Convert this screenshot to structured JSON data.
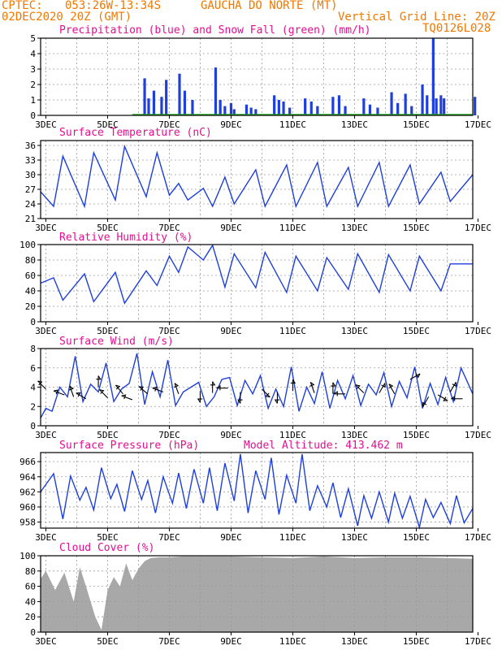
{
  "header": {
    "source": "CPTEC:",
    "coords": "053:26W-13:34S",
    "location": "GAUCHA DO NORTE (MT)",
    "run": "02DEC2020 20Z (GMT)",
    "grid_note": "Vertical Grid Line: 20Z",
    "model": "TQ0126L028"
  },
  "colors": {
    "header": "#f07800",
    "titles": "#e01090",
    "series": "#1f3fdc",
    "snow": "#22aa22",
    "cloud": "#a8a8a8",
    "grid": "#9a9a9a"
  },
  "x_ticks": [
    "3DEC",
    "5DEC",
    "7DEC",
    "9DEC",
    "11DEC",
    "13DEC",
    "15DEC",
    "17DEC"
  ],
  "chart_data": [
    {
      "type": "bar",
      "title": "Precipitation (blue) and Snow Fall (green) (mm/h)",
      "ylim": [
        0,
        5
      ],
      "yticks": [
        "0",
        "1",
        "2",
        "3",
        "4",
        "5"
      ],
      "grid": true,
      "x_days": [
        6.2,
        6.33,
        6.5,
        6.75,
        6.9,
        7.33,
        7.5,
        7.75,
        8.5,
        8.65,
        8.8,
        9.0,
        9.1,
        9.5,
        9.65,
        9.8,
        10.4,
        10.55,
        10.7,
        10.9,
        11.4,
        11.6,
        11.8,
        12.3,
        12.5,
        12.7,
        13.3,
        13.5,
        13.75,
        14.2,
        14.4,
        14.65,
        14.85,
        15.2,
        15.35,
        15.55,
        15.65,
        15.8,
        15.9,
        16.9
      ],
      "values": [
        2.4,
        1.1,
        1.6,
        1.2,
        2.3,
        2.7,
        1.6,
        1.0,
        3.1,
        1.0,
        0.6,
        0.8,
        0.4,
        0.7,
        0.5,
        0.4,
        1.3,
        1.0,
        0.9,
        0.5,
        1.1,
        0.9,
        0.6,
        1.2,
        1.3,
        0.6,
        1.1,
        0.7,
        0.5,
        1.5,
        0.8,
        1.4,
        0.6,
        2.0,
        1.3,
        5.0,
        1.1,
        1.3,
        1.1,
        1.2
      ],
      "snow": 0
    },
    {
      "type": "line",
      "title": "Surface Temperature (nC)",
      "ylim": [
        21,
        37
      ],
      "yticks": [
        "21",
        "24",
        "27",
        "30",
        "33",
        "36"
      ],
      "grid": true,
      "x_days": [
        2.83,
        3.25,
        3.55,
        4.25,
        4.55,
        5.25,
        5.55,
        6.25,
        6.6,
        7.0,
        7.3,
        7.6,
        8.1,
        8.4,
        8.8,
        9.1,
        9.8,
        10.1,
        10.8,
        11.1,
        11.8,
        12.1,
        12.8,
        13.1,
        13.8,
        14.1,
        14.8,
        15.1,
        15.8,
        16.1,
        16.83
      ],
      "values": [
        26.5,
        23.5,
        33.8,
        23.5,
        34.5,
        24.8,
        35.8,
        25.5,
        34.5,
        25.8,
        28.2,
        24.8,
        27.2,
        23.5,
        29.5,
        24.0,
        31.0,
        23.5,
        32.0,
        23.5,
        32.5,
        23.5,
        31.5,
        23.5,
        32.5,
        23.5,
        32.0,
        24.0,
        30.5,
        24.5,
        30.0
      ]
    },
    {
      "type": "line",
      "title": "Relative Humidity (%)",
      "ylim": [
        0,
        100
      ],
      "yticks": [
        "0",
        "20",
        "40",
        "60",
        "80",
        "100"
      ],
      "grid": true,
      "x_days": [
        2.83,
        3.25,
        3.55,
        4.25,
        4.55,
        5.25,
        5.55,
        6.25,
        6.6,
        7.0,
        7.3,
        7.6,
        8.1,
        8.4,
        8.8,
        9.1,
        9.8,
        10.1,
        10.8,
        11.1,
        11.8,
        12.1,
        12.8,
        13.1,
        13.8,
        14.1,
        14.8,
        15.1,
        15.8,
        16.1,
        16.83
      ],
      "values": [
        50,
        57,
        28,
        62,
        26,
        64,
        24,
        66,
        47,
        85,
        64,
        97,
        80,
        99,
        45,
        88,
        44,
        90,
        38,
        85,
        40,
        83,
        42,
        88,
        38,
        87,
        40,
        85,
        40,
        75,
        75
      ]
    },
    {
      "type": "line",
      "title": "Surface Wind (m/s)",
      "ylim": [
        0,
        8
      ],
      "yticks": [
        "0",
        "2",
        "4",
        "6",
        "8"
      ],
      "grid": true,
      "x_days": [
        2.83,
        3.0,
        3.2,
        3.45,
        3.7,
        3.95,
        4.2,
        4.45,
        4.7,
        4.95,
        5.2,
        5.45,
        5.7,
        5.95,
        6.2,
        6.45,
        6.7,
        6.95,
        7.2,
        7.45,
        7.7,
        7.95,
        8.2,
        8.45,
        8.7,
        8.95,
        9.2,
        9.45,
        9.7,
        9.95,
        10.2,
        10.45,
        10.7,
        10.95,
        11.2,
        11.45,
        11.7,
        11.95,
        12.2,
        12.45,
        12.7,
        12.95,
        13.2,
        13.45,
        13.7,
        13.95,
        14.2,
        14.45,
        14.7,
        14.95,
        15.2,
        15.45,
        15.7,
        15.95,
        16.2,
        16.45,
        16.83
      ],
      "values": [
        0.8,
        1.8,
        1.5,
        4.0,
        3.0,
        7.2,
        2.5,
        4.3,
        3.5,
        6.5,
        2.5,
        3.8,
        4.4,
        7.5,
        2.2,
        5.6,
        3.0,
        6.8,
        2.1,
        3.5,
        4.0,
        4.5,
        2.0,
        3.0,
        4.8,
        5.0,
        2.1,
        4.7,
        3.3,
        5.2,
        1.8,
        3.8,
        2.0,
        6.1,
        1.5,
        4.0,
        2.3,
        5.6,
        1.8,
        4.7,
        2.8,
        5.2,
        2.1,
        4.3,
        3.2,
        5.5,
        2.0,
        4.6,
        2.9,
        6.1,
        1.8,
        4.4,
        2.2,
        5.0,
        2.5,
        6.0,
        3.3
      ],
      "arrows": [
        {
          "x": 3.0,
          "y": 3.8,
          "dir": 225
        },
        {
          "x": 3.6,
          "y": 3.2,
          "dir": 200
        },
        {
          "x": 3.9,
          "y": 3.0,
          "dir": 250
        },
        {
          "x": 4.3,
          "y": 2.8,
          "dir": 210
        },
        {
          "x": 4.7,
          "y": 4.0,
          "dir": 270
        },
        {
          "x": 5.0,
          "y": 2.9,
          "dir": 225
        },
        {
          "x": 5.5,
          "y": 3.3,
          "dir": 230
        },
        {
          "x": 5.8,
          "y": 2.7,
          "dir": 200
        },
        {
          "x": 6.3,
          "y": 3.3,
          "dir": 220
        },
        {
          "x": 6.8,
          "y": 3.5,
          "dir": 200
        },
        {
          "x": 7.3,
          "y": 3.3,
          "dir": 250
        },
        {
          "x": 8.0,
          "y": 3.6,
          "dir": 90
        },
        {
          "x": 8.4,
          "y": 3.4,
          "dir": 270
        },
        {
          "x": 8.9,
          "y": 3.9,
          "dir": 180
        },
        {
          "x": 9.3,
          "y": 3.5,
          "dir": 90
        },
        {
          "x": 10.0,
          "y": 3.8,
          "dir": 45
        },
        {
          "x": 10.5,
          "y": 3.5,
          "dir": 90
        },
        {
          "x": 11.0,
          "y": 3.6,
          "dir": 270
        },
        {
          "x": 11.7,
          "y": 3.4,
          "dir": 250
        },
        {
          "x": 12.3,
          "y": 3.3,
          "dir": 270
        },
        {
          "x": 12.7,
          "y": 3.3,
          "dir": 180
        },
        {
          "x": 13.3,
          "y": 3.4,
          "dir": 225
        },
        {
          "x": 13.8,
          "y": 3.4,
          "dir": 300
        },
        {
          "x": 14.3,
          "y": 3.3,
          "dir": 240
        },
        {
          "x": 14.8,
          "y": 4.8,
          "dir": 330
        },
        {
          "x": 15.4,
          "y": 3.0,
          "dir": 120
        },
        {
          "x": 15.7,
          "y": 3.2,
          "dir": 30
        },
        {
          "x": 16.1,
          "y": 3.5,
          "dir": 300
        },
        {
          "x": 16.5,
          "y": 2.8,
          "dir": 180
        }
      ]
    },
    {
      "type": "line",
      "title": "Surface Pressure (hPa)",
      "note": "Model Altitude: 413.462 m",
      "ylim": [
        957.2,
        967.2
      ],
      "yticks": [
        "958",
        "960",
        "962",
        "964",
        "966"
      ],
      "grid": true,
      "x_days": [
        2.83,
        3.25,
        3.55,
        3.8,
        4.1,
        4.3,
        4.55,
        4.8,
        5.1,
        5.3,
        5.55,
        5.8,
        6.1,
        6.3,
        6.55,
        6.8,
        7.1,
        7.3,
        7.55,
        7.8,
        8.1,
        8.3,
        8.55,
        8.8,
        9.1,
        9.3,
        9.55,
        9.8,
        10.1,
        10.3,
        10.55,
        10.8,
        11.1,
        11.3,
        11.55,
        11.8,
        12.1,
        12.3,
        12.55,
        12.8,
        13.1,
        13.3,
        13.55,
        13.8,
        14.1,
        14.3,
        14.55,
        14.8,
        15.1,
        15.3,
        15.55,
        15.8,
        16.1,
        16.3,
        16.55,
        16.83
      ],
      "values": [
        962.0,
        964.4,
        958.4,
        964.1,
        960.9,
        962.6,
        959.6,
        965.2,
        961.1,
        963.0,
        959.4,
        964.8,
        961.0,
        963.5,
        959.2,
        964.0,
        960.5,
        964.5,
        959.8,
        965.0,
        960.5,
        965.2,
        959.5,
        965.8,
        960.8,
        967.0,
        959.2,
        964.8,
        961.0,
        966.5,
        959.0,
        964.2,
        960.5,
        967.0,
        959.5,
        962.8,
        960.0,
        963.2,
        958.6,
        962.4,
        957.5,
        961.5,
        958.5,
        962.0,
        958.0,
        961.8,
        958.5,
        961.4,
        957.3,
        961.0,
        958.6,
        960.6,
        957.8,
        961.5,
        957.9,
        959.8
      ]
    },
    {
      "type": "area",
      "title": "Cloud Cover (%)",
      "ylim": [
        0,
        100
      ],
      "yticks": [
        "0",
        "20",
        "40",
        "60",
        "80",
        "100"
      ],
      "grid": true,
      "x_days": [
        2.83,
        3.0,
        3.3,
        3.6,
        3.9,
        4.1,
        4.3,
        4.45,
        4.6,
        4.8,
        5.0,
        5.2,
        5.4,
        5.6,
        5.8,
        6.0,
        6.2,
        6.4,
        6.7,
        7.0,
        7.4,
        8.0,
        9.0,
        10.0,
        11.0,
        12.0,
        13.0,
        14.0,
        15.0,
        16.0,
        16.83
      ],
      "values": [
        70,
        80,
        55,
        78,
        40,
        85,
        60,
        40,
        20,
        3,
        55,
        72,
        60,
        90,
        68,
        83,
        93,
        97,
        98,
        98,
        99,
        99,
        99,
        98,
        97,
        99,
        97,
        98,
        98,
        97,
        96
      ]
    }
  ]
}
